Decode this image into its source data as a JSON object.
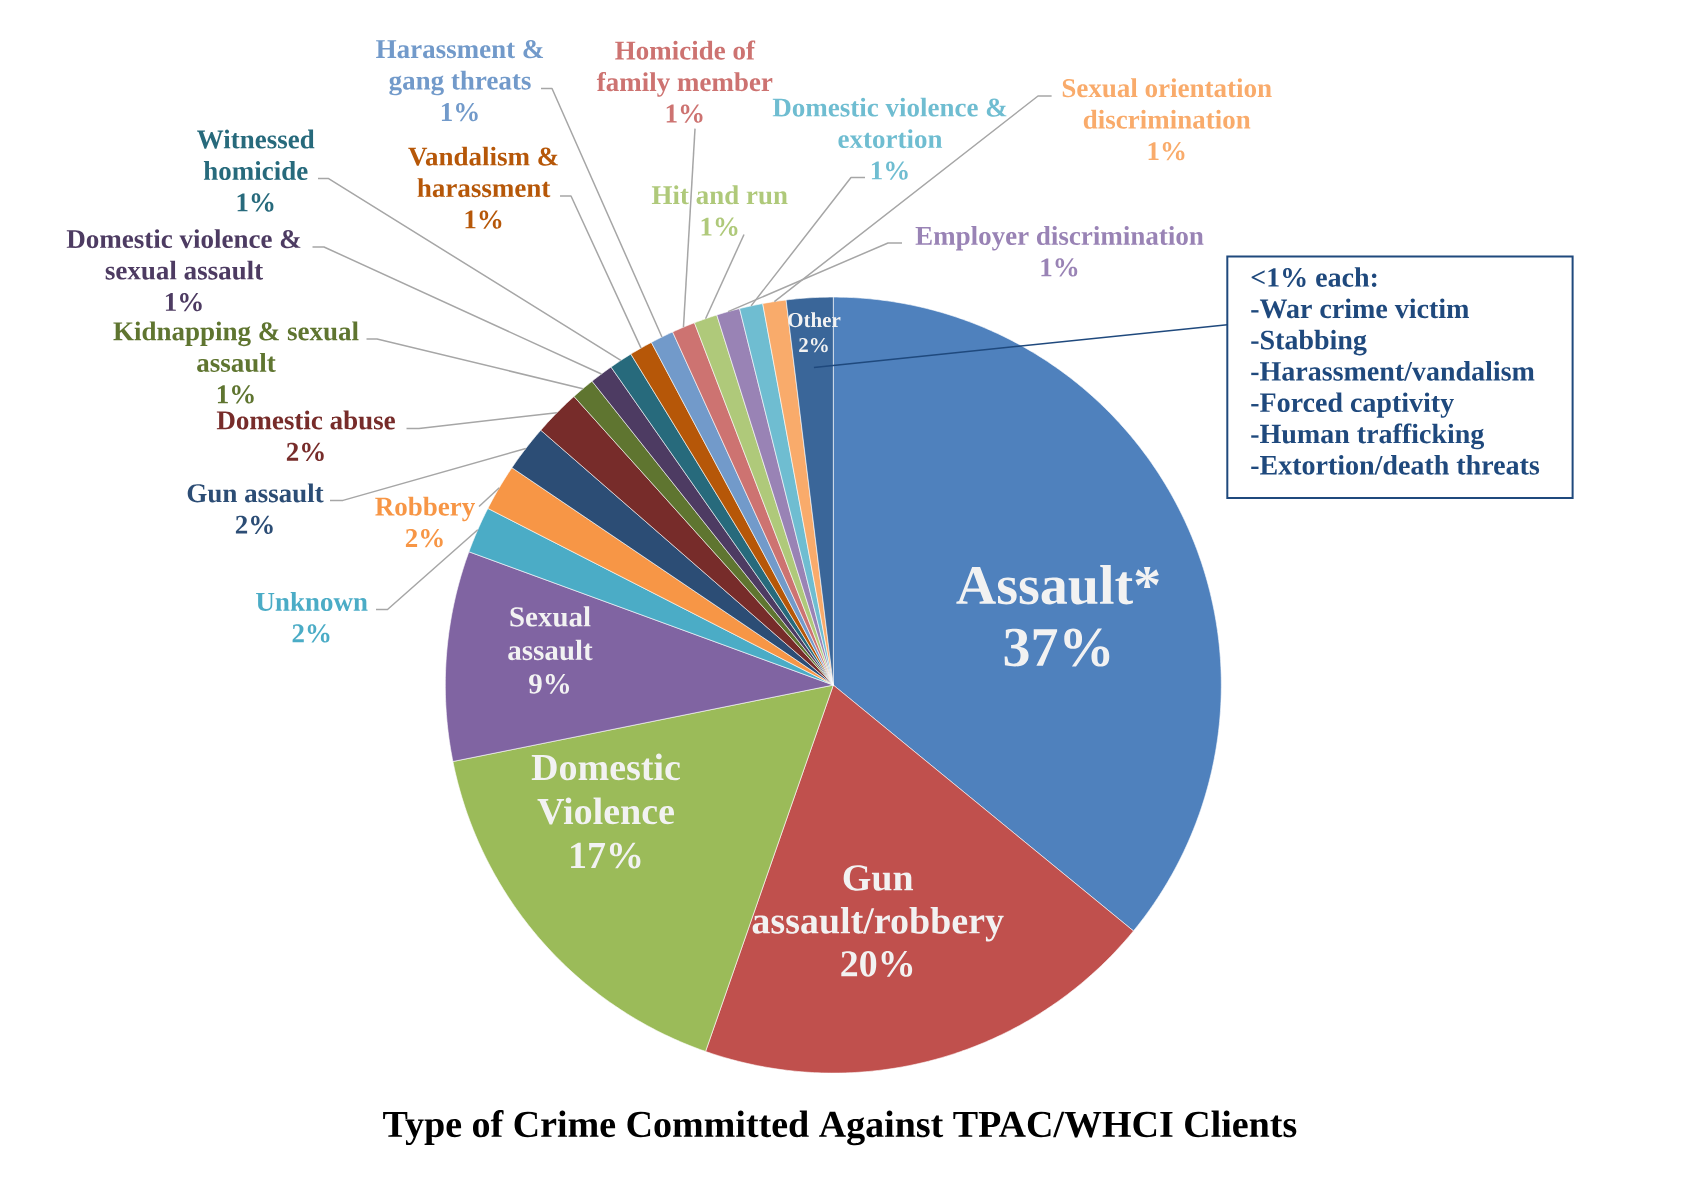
{
  "chart_data": {
    "type": "pie",
    "title": "Type of Crime Committed Against TPAC/WHCI Clients",
    "categories": [
      "Assault*",
      "Gun assault/robbery",
      "Domestic Violence",
      "Sexual assault",
      "Unknown",
      "Robbery",
      "Gun assault",
      "Domestic abuse",
      "Kidnapping & sexual assault",
      "Domestic violence & sexual assault",
      "Witnessed homicide",
      "Vandalism & harassment",
      "Harassment & gang threats",
      "Homicide of family member",
      "Hit and run",
      "Employer discrimination",
      "Domestic violence & extortion",
      "Sexual orientation discrimination",
      "Other"
    ],
    "values": [
      37,
      20,
      17,
      9,
      2,
      2,
      2,
      2,
      1,
      1,
      1,
      1,
      1,
      1,
      1,
      1,
      1,
      1,
      2
    ],
    "colors": [
      "#4f81bd",
      "#c0504d",
      "#9bbb59",
      "#8064a2",
      "#4bacc6",
      "#f79646",
      "#2c4d75",
      "#772c2a",
      "#5f7530",
      "#4d3b62",
      "#276a7c",
      "#b65708",
      "#729aca",
      "#cd7371",
      "#afc97a",
      "#9983b5",
      "#6fbdd1",
      "#f9ab6b",
      "#3a6699"
    ],
    "value_labels": [
      "37%",
      "20%",
      "17%",
      "9%",
      "2%",
      "2%",
      "2%",
      "2%",
      "1%",
      "1%",
      "1%",
      "1%",
      "1%",
      "1%",
      "1%",
      "1%",
      "1%",
      "1%",
      "2%"
    ],
    "annotations": [
      "<1% each:",
      "-War crime victim",
      "-Stabbing",
      "-Harassment/vandalism",
      "-Forced captivity",
      "-Human trafficking",
      "-Extortion/death threats"
    ]
  }
}
